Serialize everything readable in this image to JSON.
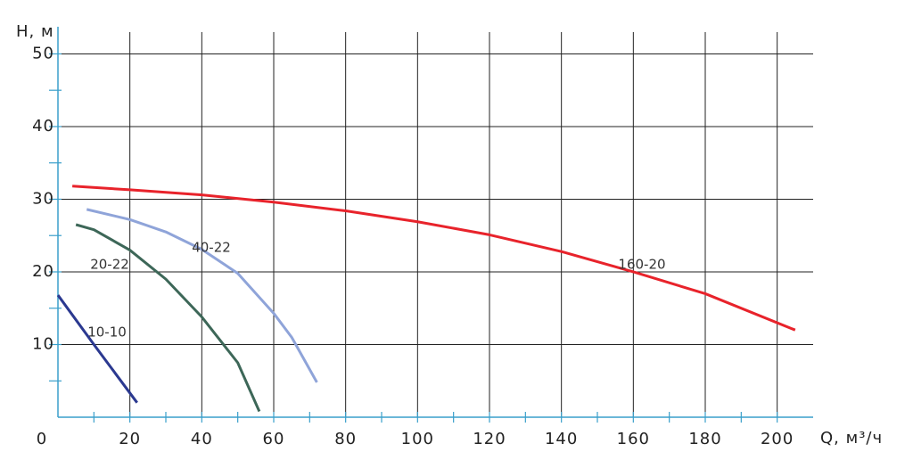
{
  "chart_data": {
    "type": "line",
    "x_label": "Q, м³/ч",
    "y_label": "H, м",
    "xlim": [
      0,
      210
    ],
    "ylim": [
      0,
      53
    ],
    "xticks": [
      0,
      20,
      40,
      60,
      80,
      100,
      120,
      140,
      160,
      180,
      200
    ],
    "xminorticks": [
      10,
      30,
      50,
      70,
      90,
      110,
      130,
      150,
      170,
      190
    ],
    "yticks": [
      10,
      20,
      30,
      40,
      50
    ],
    "yminorticks": [
      5,
      15,
      25,
      35,
      45
    ],
    "grid": true,
    "series": [
      {
        "name": "10-10",
        "color": "#2b3990",
        "x": [
          0,
          10,
          22
        ],
        "values": [
          16.8,
          10,
          2
        ]
      },
      {
        "name": "20-22",
        "color": "#3d6758",
        "x": [
          5,
          10,
          20,
          30,
          40,
          50,
          56
        ],
        "values": [
          26.5,
          25.8,
          23,
          19,
          13.8,
          7.5,
          0.8
        ]
      },
      {
        "name": "40-22",
        "color": "#8fa4d9",
        "x": [
          8,
          20,
          30,
          40,
          50,
          60,
          65,
          72
        ],
        "values": [
          28.6,
          27.2,
          25.5,
          23.1,
          19.8,
          14.3,
          11,
          4.8
        ]
      },
      {
        "name": "160-20",
        "color": "#e8232b",
        "x": [
          4,
          20,
          40,
          60,
          80,
          100,
          120,
          140,
          160,
          180,
          205
        ],
        "values": [
          31.8,
          31.3,
          30.6,
          29.6,
          28.4,
          26.9,
          25.1,
          22.8,
          20,
          17,
          12
        ]
      }
    ]
  }
}
